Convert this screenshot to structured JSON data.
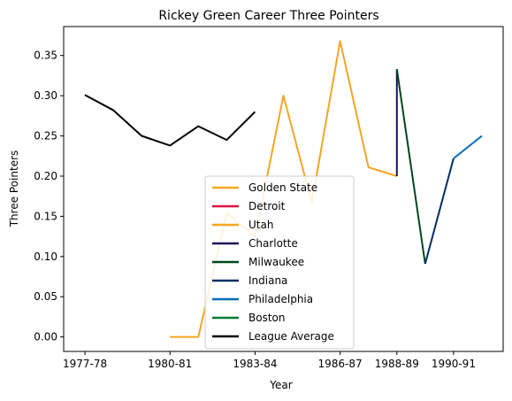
{
  "chart_data": {
    "type": "line",
    "title": "Rickey Green Career Three Pointers",
    "xlabel": "Year",
    "ylabel": "Three Pointers",
    "x_ticks": [
      "1977-78",
      "1980-81",
      "1983-84",
      "1986-87",
      "1988-89",
      "1990-91"
    ],
    "x_categories": [
      "1977-78",
      "1978-79",
      "1979-80",
      "1980-81",
      "1981-82",
      "1982-83",
      "1983-84",
      "1984-85",
      "1985-86",
      "1986-87",
      "1987-88",
      "1988-89",
      "1989-90",
      "1990-91",
      "1991-92"
    ],
    "ylim": [
      -0.018,
      0.386
    ],
    "y_ticks": [
      0.0,
      0.05,
      0.1,
      0.15,
      0.2,
      0.25,
      0.3,
      0.35
    ],
    "y_tick_labels": [
      "0.00",
      "0.05",
      "0.10",
      "0.15",
      "0.20",
      "0.25",
      "0.30",
      "0.35"
    ],
    "grid": false,
    "legend_position": "lower-center",
    "series": [
      {
        "name": "Golden State",
        "color": "#f9a825",
        "x": [
          "1977-78"
        ],
        "values": [
          0.3
        ]
      },
      {
        "name": "Detroit",
        "color": "#dc143c",
        "x": [
          "1978-79"
        ],
        "values": [
          0.28
        ]
      },
      {
        "name": "Utah",
        "color": "#f5a623",
        "x": [
          "1980-81",
          "1981-82",
          "1982-83",
          "1983-84",
          "1984-85",
          "1985-86",
          "1986-87",
          "1987-88",
          "1988-89"
        ],
        "values": [
          0.0,
          0.0,
          0.154,
          0.125,
          0.3,
          0.167,
          0.368,
          0.211,
          0.2
        ]
      },
      {
        "name": "Charlotte",
        "color": "#1d1160",
        "x": [
          "1988-89",
          "1988-89"
        ],
        "values": [
          0.2,
          0.333
        ]
      },
      {
        "name": "Milwaukee",
        "color": "#00471b",
        "x": [
          "1988-89",
          "1989-90"
        ],
        "values": [
          0.333,
          0.091
        ]
      },
      {
        "name": "Indiana",
        "color": "#002d62",
        "x": [
          "1989-90",
          "1990-91"
        ],
        "values": [
          0.091,
          0.222
        ]
      },
      {
        "name": "Philadelphia",
        "color": "#006bb6",
        "x": [
          "1990-91",
          "1991-92"
        ],
        "values": [
          0.222,
          0.25
        ]
      },
      {
        "name": "Boston",
        "color": "#007a33",
        "x": [
          "1988-89"
        ],
        "values": [
          0.333
        ]
      },
      {
        "name": "League Average",
        "color": "#000000",
        "x": [
          "1977-78",
          "1978-79",
          "1979-80",
          "1980-81",
          "1981-82",
          "1982-83",
          "1983-84"
        ],
        "values": [
          0.301,
          0.282,
          0.25,
          0.238,
          0.262,
          0.245,
          0.28
        ]
      }
    ]
  }
}
